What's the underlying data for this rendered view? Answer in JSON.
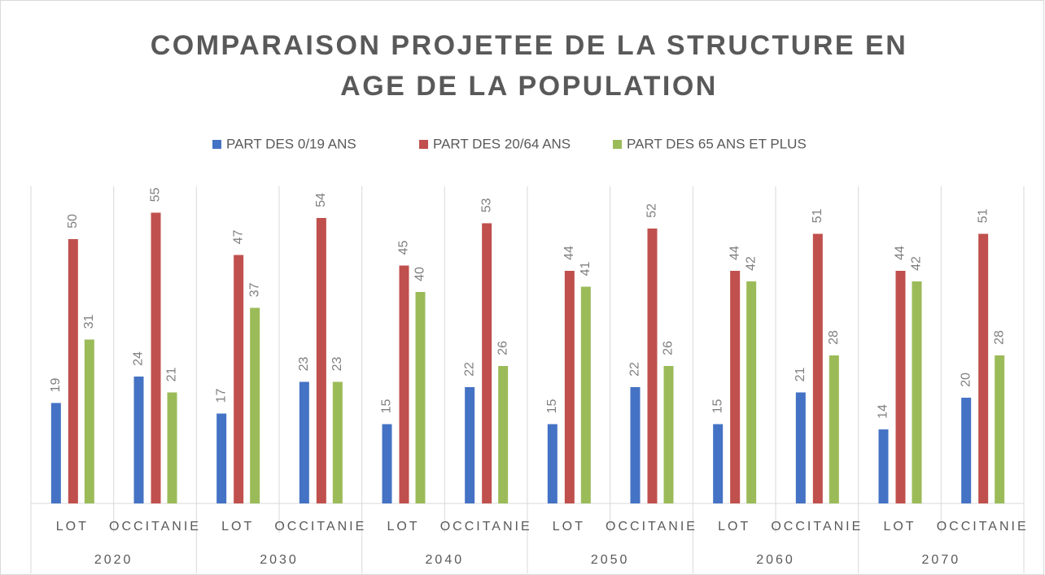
{
  "chart_data": {
    "type": "bar",
    "title": [
      "COMPARAISON  PROJETEE DE LA STRUCTURE EN",
      "AGE DE LA POPULATION"
    ],
    "categories": [
      "LOT",
      "OCCITANIE",
      "LOT",
      "OCCITANIE",
      "LOT",
      "OCCITANIE",
      "LOT",
      "OCCITANIE",
      "LOT",
      "OCCITANIE",
      "LOT",
      "OCCITANIE"
    ],
    "groups": [
      "2020",
      "2030",
      "2040",
      "2050",
      "2060",
      "2070"
    ],
    "series": [
      {
        "name": "PART DES 0/19 ANS",
        "color": "#4472c4",
        "values": [
          19,
          24,
          17,
          23,
          15,
          22,
          15,
          22,
          15,
          21,
          14,
          20
        ]
      },
      {
        "name": "PART DES 20/64 ANS",
        "color": "#c0504d",
        "values": [
          50,
          55,
          47,
          54,
          45,
          53,
          44,
          52,
          44,
          51,
          44,
          51
        ]
      },
      {
        "name": "PART DES 65 ANS ET PLUS",
        "color": "#9bbb59",
        "values": [
          31,
          21,
          37,
          23,
          40,
          26,
          41,
          26,
          42,
          28,
          42,
          28
        ]
      }
    ],
    "ylim": [
      0,
      60
    ],
    "legend": "top"
  }
}
